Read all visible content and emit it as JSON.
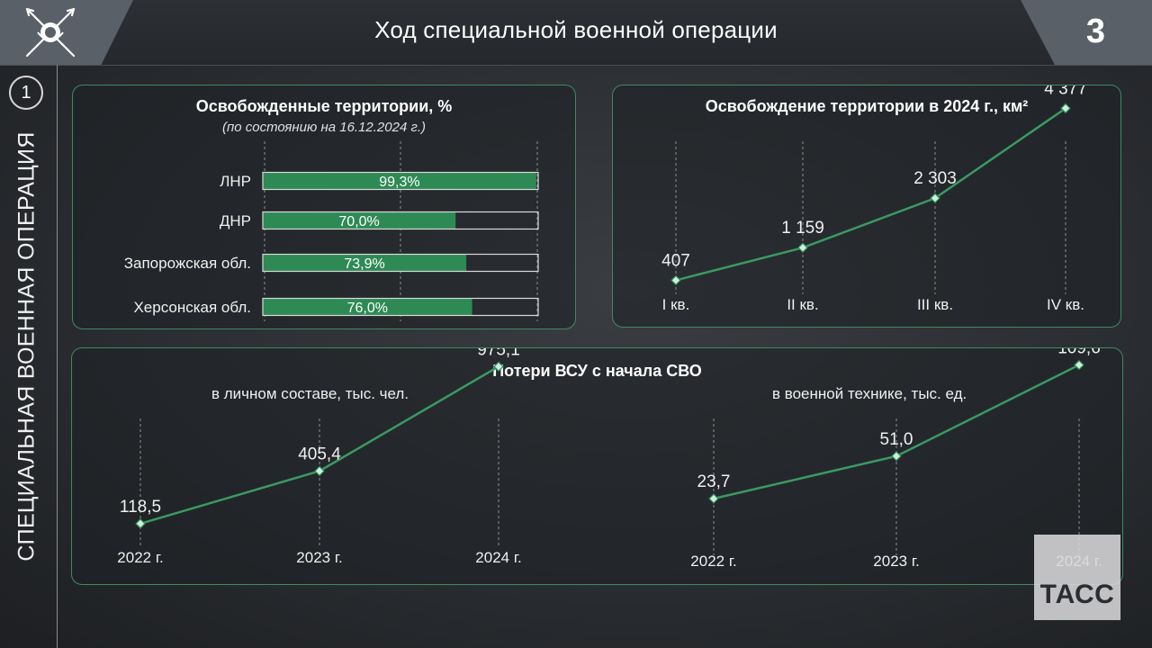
{
  "header": {
    "title": "Ход специальной военной операции",
    "slide_number": "3",
    "emblem_icon": "crossed-arrows-emblem-icon"
  },
  "sidebar": {
    "section_number": "1",
    "section_title": "СПЕЦИАЛЬНАЯ ВОЕННАЯ ОПЕРАЦИЯ"
  },
  "watermark": {
    "text": "ТАСС"
  },
  "colors": {
    "accent": "#2e8a55",
    "panel_border": "#3f8a5f",
    "background": "#2a2d31"
  },
  "chart_data": [
    {
      "type": "bar",
      "orientation": "horizontal",
      "title": "Освобожденные территории, %",
      "subtitle": "(по состоянию на 16.12.2024 г.)",
      "categories": [
        "ЛНР",
        "ДНР",
        "Запорожская обл.",
        "Херсонская обл."
      ],
      "values": [
        99.3,
        70.0,
        73.9,
        76.0
      ],
      "value_labels": [
        "99,3%",
        "70,0%",
        "73,9%",
        "76,0%"
      ],
      "xlim": [
        0,
        100
      ],
      "grid": true
    },
    {
      "type": "line",
      "title": "Освобождение территории в 2024 г., км²",
      "categories": [
        "I кв.",
        "II кв.",
        "III кв.",
        "IV кв."
      ],
      "values": [
        407,
        1159,
        2303,
        4377
      ],
      "value_labels": [
        "407",
        "1 159",
        "2 303",
        "4 377"
      ],
      "ylim": [
        0,
        4800
      ],
      "grid": true
    },
    {
      "type": "line",
      "title": "Потери ВСУ с начала СВО",
      "subtitle": "в личном составе, тыс. чел.",
      "categories": [
        "2022 г.",
        "2023 г.",
        "2024 г."
      ],
      "values": [
        118.5,
        405.4,
        975.1
      ],
      "value_labels": [
        "118,5",
        "405,4",
        "975,1"
      ],
      "ylim": [
        0,
        1050
      ],
      "grid": true
    },
    {
      "type": "line",
      "subtitle": "в военной технике, тыс. ед.",
      "categories": [
        "2022 г.",
        "2023 г.",
        "2024 г."
      ],
      "values": [
        23.7,
        51.0,
        109.6
      ],
      "value_labels": [
        "23,7",
        "51,0",
        "109,6"
      ],
      "ylim": [
        0,
        118
      ],
      "grid": true
    }
  ]
}
